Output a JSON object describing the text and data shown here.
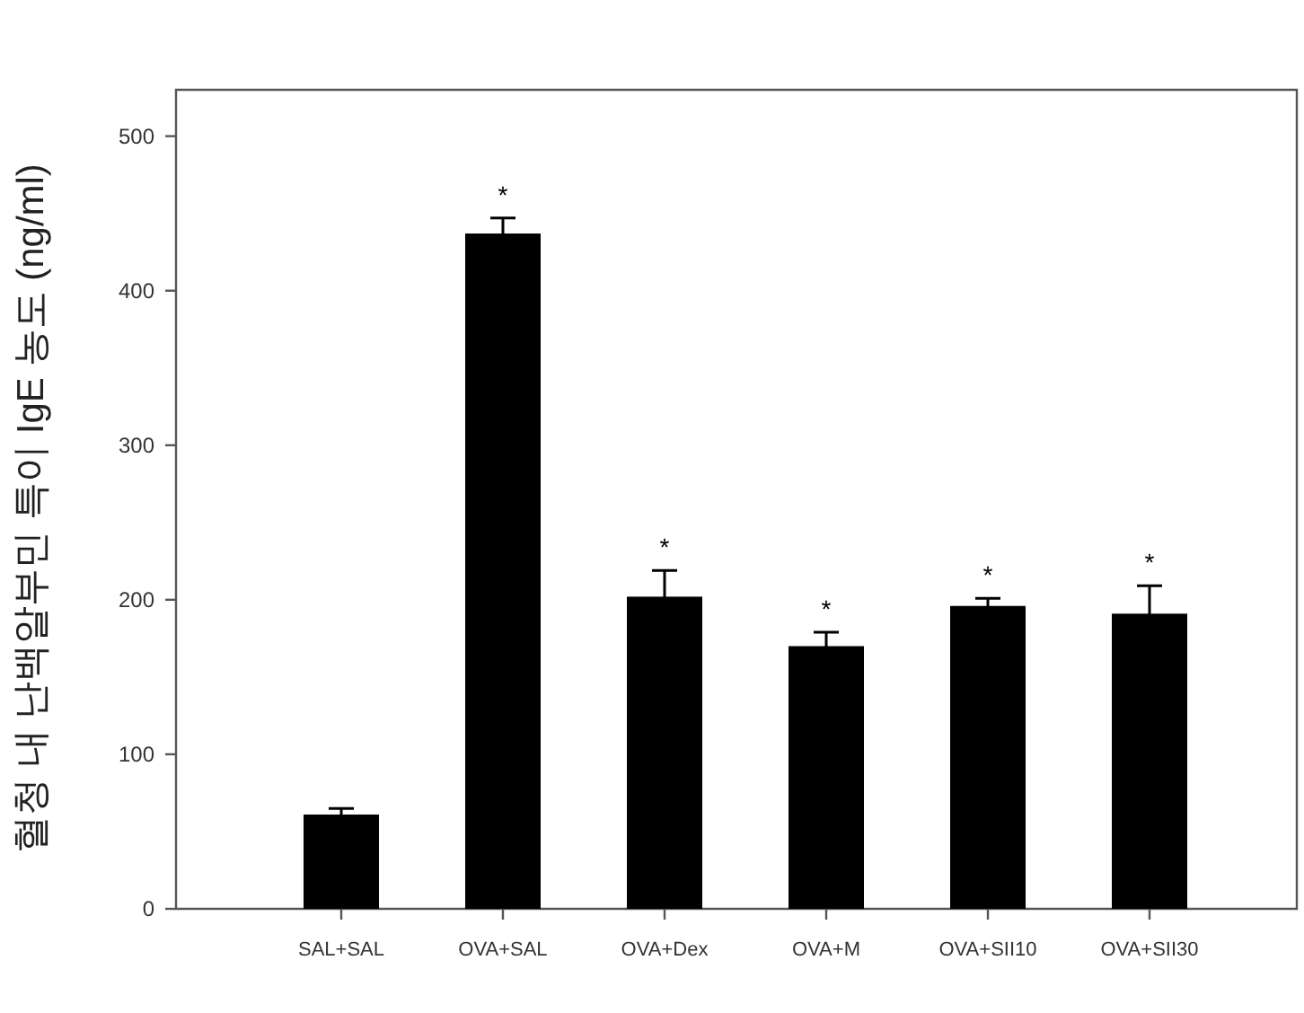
{
  "chart_data": {
    "type": "bar",
    "ylabel": "혈청 내 난백알부민 특이 IgE 농도 (ng/ml)",
    "categories": [
      "SAL+SAL",
      "OVA+SAL",
      "OVA+Dex",
      "OVA+M",
      "OVA+SII10",
      "OVA+SII30"
    ],
    "values": [
      61,
      437,
      202,
      170,
      196,
      191
    ],
    "errors": [
      4,
      10,
      17,
      9,
      5,
      18
    ],
    "color": "#000000",
    "ylim": [
      0,
      530
    ],
    "yticks": [
      0,
      100,
      200,
      300,
      400,
      500
    ],
    "value_labels": [
      null,
      "*",
      "*",
      "*",
      "*",
      "*"
    ]
  }
}
